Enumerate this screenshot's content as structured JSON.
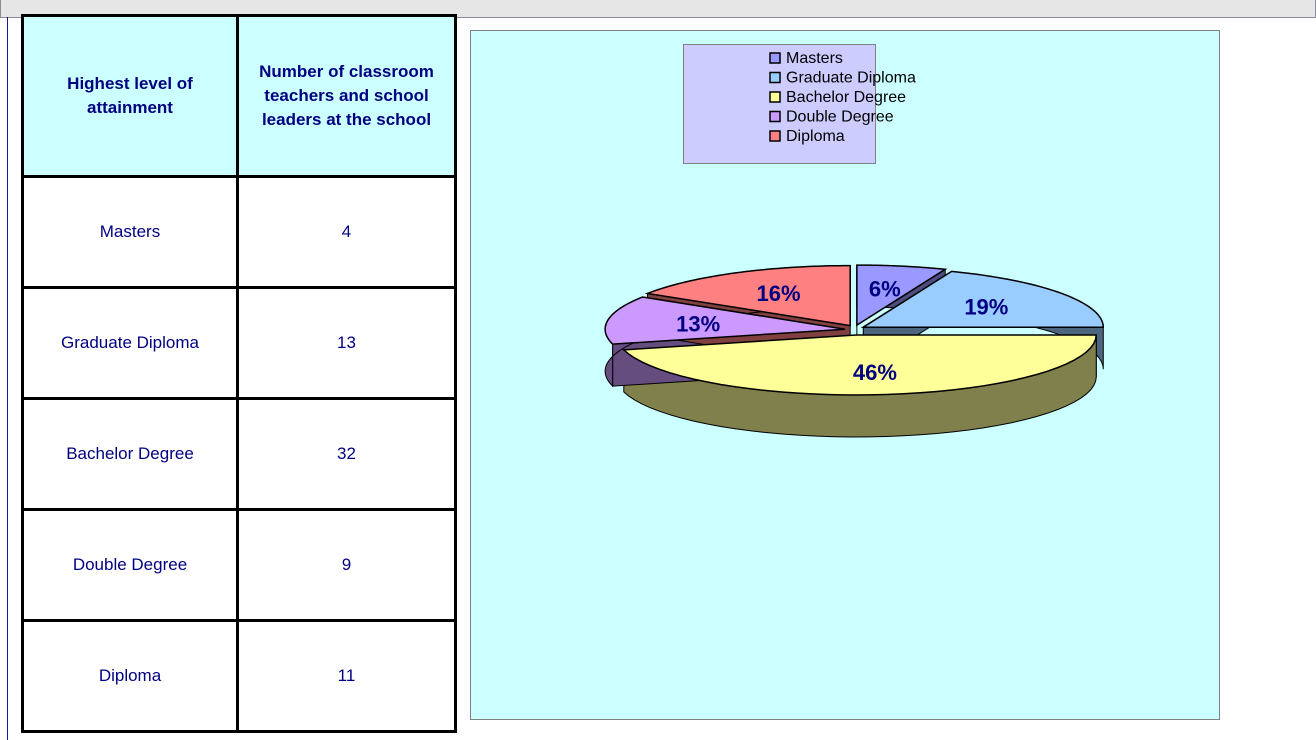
{
  "table": {
    "header": [
      "Highest level of attainment",
      "Number of classroom teachers and school leaders at the school"
    ],
    "rows": [
      [
        "Masters",
        4
      ],
      [
        "Graduate Diploma",
        13
      ],
      [
        "Bachelor Degree",
        32
      ],
      [
        "Double Degree",
        9
      ],
      [
        "Diploma",
        11
      ]
    ]
  },
  "chart_data": {
    "type": "pie",
    "categories": [
      "Masters",
      "Graduate Diploma",
      "Bachelor Degree",
      "Double Degree",
      "Diploma"
    ],
    "values": [
      6,
      19,
      46,
      13,
      16
    ],
    "value_labels": [
      "6%",
      "19%",
      "46%",
      "13%",
      "16%"
    ],
    "colors": [
      "#9999ff",
      "#99ccff",
      "#ffff99",
      "#cc99ff",
      "#ff8080"
    ],
    "legend": "top"
  }
}
